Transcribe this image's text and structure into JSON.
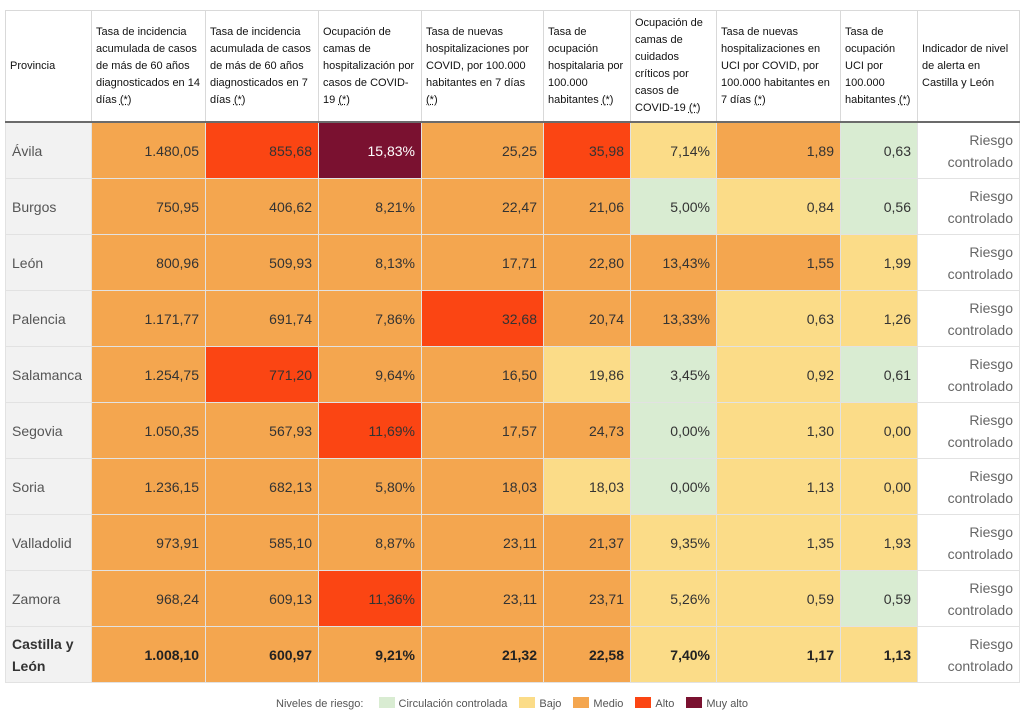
{
  "headers": [
    "Provincia",
    "Tasa de incidencia acumulada de casos de más de 60 años diagnosticados en 14 días",
    "Tasa de incidencia acumulada de casos de más de 60 años diagnosticados en 7 días",
    "Ocupación de camas de hospitalización por casos de COVID-19",
    "Tasa de nuevas hospitalizaciones por COVID, por 100.000 habitantes en 7 días",
    "Tasa de ocupación hospitalaria por 100.000 habitantes",
    "Ocupación de camas de cuidados críticos por casos de COVID-19",
    "Tasa de nuevas hospitalizaciones en UCI por COVID, por 100.000 habitantes en 7 días",
    "Tasa de ocupación UCI por 100.000 habitantes",
    "Indicador de nivel de alerta en Castilla y León"
  ],
  "asterisk": "(*)",
  "colors": {
    "verde": "#d9ecd2",
    "amarillo": "#fbdc88",
    "naranja": "#f4a64f",
    "rojo": "#fb4513",
    "granate": "#7a1130"
  },
  "rows": [
    {
      "provincia": "Ávila",
      "values": [
        "1.480,05",
        "855,68",
        "15,83%",
        "25,25",
        "35,98",
        "7,14%",
        "1,89",
        "0,63"
      ],
      "levels": [
        "naranja",
        "rojo",
        "granate",
        "naranja",
        "rojo",
        "amarillo",
        "naranja",
        "verde"
      ],
      "indicador": "Riesgo controlado"
    },
    {
      "provincia": "Burgos",
      "values": [
        "750,95",
        "406,62",
        "8,21%",
        "22,47",
        "21,06",
        "5,00%",
        "0,84",
        "0,56"
      ],
      "levels": [
        "naranja",
        "naranja",
        "naranja",
        "naranja",
        "naranja",
        "verde",
        "amarillo",
        "verde"
      ],
      "indicador": "Riesgo controlado"
    },
    {
      "provincia": "León",
      "values": [
        "800,96",
        "509,93",
        "8,13%",
        "17,71",
        "22,80",
        "13,43%",
        "1,55",
        "1,99"
      ],
      "levels": [
        "naranja",
        "naranja",
        "naranja",
        "naranja",
        "naranja",
        "naranja",
        "naranja",
        "amarillo"
      ],
      "indicador": "Riesgo controlado"
    },
    {
      "provincia": "Palencia",
      "values": [
        "1.171,77",
        "691,74",
        "7,86%",
        "32,68",
        "20,74",
        "13,33%",
        "0,63",
        "1,26"
      ],
      "levels": [
        "naranja",
        "naranja",
        "naranja",
        "rojo",
        "naranja",
        "naranja",
        "amarillo",
        "amarillo"
      ],
      "indicador": "Riesgo controlado"
    },
    {
      "provincia": "Salamanca",
      "values": [
        "1.254,75",
        "771,20",
        "9,64%",
        "16,50",
        "19,86",
        "3,45%",
        "0,92",
        "0,61"
      ],
      "levels": [
        "naranja",
        "rojo",
        "naranja",
        "naranja",
        "amarillo",
        "verde",
        "amarillo",
        "verde"
      ],
      "indicador": "Riesgo controlado"
    },
    {
      "provincia": "Segovia",
      "values": [
        "1.050,35",
        "567,93",
        "11,69%",
        "17,57",
        "24,73",
        "0,00%",
        "1,30",
        "0,00"
      ],
      "levels": [
        "naranja",
        "naranja",
        "rojo",
        "naranja",
        "naranja",
        "verde",
        "amarillo",
        "amarillo"
      ],
      "indicador": "Riesgo controlado"
    },
    {
      "provincia": "Soria",
      "values": [
        "1.236,15",
        "682,13",
        "5,80%",
        "18,03",
        "18,03",
        "0,00%",
        "1,13",
        "0,00"
      ],
      "levels": [
        "naranja",
        "naranja",
        "naranja",
        "naranja",
        "amarillo",
        "verde",
        "amarillo",
        "amarillo"
      ],
      "indicador": "Riesgo controlado"
    },
    {
      "provincia": "Valladolid",
      "values": [
        "973,91",
        "585,10",
        "8,87%",
        "23,11",
        "21,37",
        "9,35%",
        "1,35",
        "1,93"
      ],
      "levels": [
        "naranja",
        "naranja",
        "naranja",
        "naranja",
        "naranja",
        "amarillo",
        "amarillo",
        "amarillo"
      ],
      "indicador": "Riesgo controlado"
    },
    {
      "provincia": "Zamora",
      "values": [
        "968,24",
        "609,13",
        "11,36%",
        "23,11",
        "23,71",
        "5,26%",
        "0,59",
        "0,59"
      ],
      "levels": [
        "naranja",
        "naranja",
        "rojo",
        "naranja",
        "naranja",
        "amarillo",
        "amarillo",
        "verde"
      ],
      "indicador": "Riesgo controlado"
    },
    {
      "provincia": "Castilla y León",
      "values": [
        "1.008,10",
        "600,97",
        "9,21%",
        "21,32",
        "22,58",
        "7,40%",
        "1,17",
        "1,13"
      ],
      "levels": [
        "naranja",
        "naranja",
        "naranja",
        "naranja",
        "naranja",
        "amarillo",
        "amarillo",
        "amarillo"
      ],
      "indicador": "Riesgo controlado",
      "total": true
    }
  ],
  "legend": {
    "title": "Niveles de riesgo:",
    "items": [
      {
        "label": "Circulación controlada",
        "level": "verde"
      },
      {
        "label": "Bajo",
        "level": "amarillo"
      },
      {
        "label": "Medio",
        "level": "naranja"
      },
      {
        "label": "Alto",
        "level": "rojo"
      },
      {
        "label": "Muy alto",
        "level": "granate"
      }
    ]
  }
}
